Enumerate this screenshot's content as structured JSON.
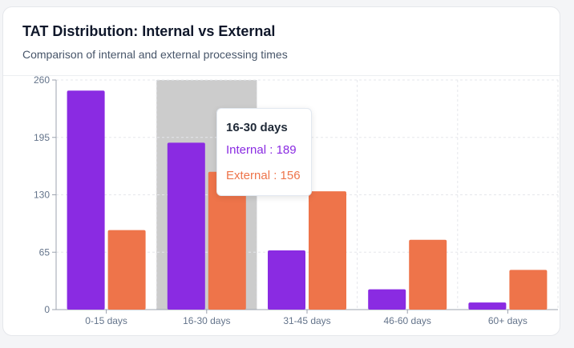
{
  "card": {
    "title": "TAT Distribution: Internal vs External",
    "subtitle": "Comparison of internal and external processing times"
  },
  "chart_data": {
    "type": "bar",
    "categories": [
      "0-15 days",
      "16-30 days",
      "31-45 days",
      "46-60 days",
      "60+ days"
    ],
    "series": [
      {
        "name": "Internal",
        "color": "#8a2be2",
        "values": [
          248,
          189,
          67,
          23,
          8
        ]
      },
      {
        "name": "External",
        "color": "#ee744a",
        "values": [
          90,
          156,
          134,
          79,
          45
        ]
      }
    ],
    "yticks": [
      "0",
      "65",
      "130",
      "195",
      "260"
    ],
    "ylim": [
      0,
      260
    ],
    "grid": true,
    "highlighted_category": "16-30 days"
  },
  "tooltip": {
    "title": "16-30 days",
    "internal_label": "Internal",
    "internal_value": "189",
    "external_label": "External",
    "external_value": "156",
    "separator": " : "
  }
}
